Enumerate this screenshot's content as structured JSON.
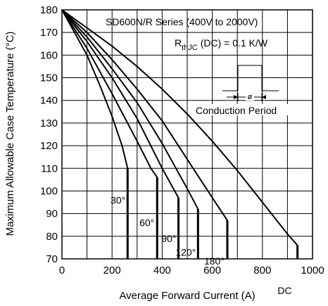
{
  "chart_data": {
    "type": "line",
    "title": "",
    "xlabel": "Average Forward Current (A)",
    "ylabel": "Maximum Allowable Case Temperature (°C)",
    "xlim": [
      0,
      1000
    ],
    "ylim": [
      70,
      180
    ],
    "x_ticks": [
      "0",
      "200",
      "400",
      "600",
      "800",
      "1000"
    ],
    "y_ticks": [
      "70",
      "80",
      "90",
      "100",
      "110",
      "120",
      "130",
      "140",
      "150",
      "160",
      "170",
      "180"
    ],
    "x_grid_step": 100,
    "y_grid_step": 10,
    "grid": true,
    "annotations": {
      "series_name": "SD600N/R Series (400V to 2000V)",
      "rth_prefix": "R",
      "rth_sub": "thJC",
      "rth_suffix": "(DC) = 0.1 K/W",
      "inset_phi": "ø",
      "inset_caption": "Conduction Period"
    },
    "series": [
      {
        "name": "30°",
        "label": "30°",
        "points": [
          [
            0,
            180
          ],
          [
            50,
            170
          ],
          [
            100,
            160
          ],
          [
            150,
            147
          ],
          [
            200,
            133
          ],
          [
            240,
            120
          ],
          [
            262,
            110
          ]
        ],
        "drop_x": 262
      },
      {
        "name": "60°",
        "label": "60°",
        "points": [
          [
            0,
            180
          ],
          [
            100,
            163
          ],
          [
            200,
            143
          ],
          [
            300,
            122
          ],
          [
            355,
            110
          ],
          [
            380,
            106
          ]
        ],
        "drop_x": 380
      },
      {
        "name": "90°",
        "label": "90°",
        "points": [
          [
            0,
            180
          ],
          [
            100,
            166
          ],
          [
            200,
            150
          ],
          [
            300,
            132
          ],
          [
            400,
            110
          ],
          [
            465,
            97
          ]
        ],
        "drop_x": 465
      },
      {
        "name": "120°",
        "label": "120°",
        "points": [
          [
            0,
            180
          ],
          [
            100,
            168
          ],
          [
            200,
            154
          ],
          [
            300,
            139
          ],
          [
            400,
            121
          ],
          [
            500,
            101
          ],
          [
            543,
            92
          ]
        ],
        "drop_x": 543
      },
      {
        "name": "180°",
        "label": "180°",
        "points": [
          [
            0,
            180
          ],
          [
            100,
            170
          ],
          [
            200,
            158
          ],
          [
            300,
            145
          ],
          [
            400,
            131
          ],
          [
            500,
            114
          ],
          [
            600,
            97
          ],
          [
            660,
            87
          ]
        ],
        "drop_x": 660
      },
      {
        "name": "DC",
        "label": "DC",
        "points": [
          [
            0,
            180
          ],
          [
            100,
            172
          ],
          [
            200,
            164
          ],
          [
            300,
            155
          ],
          [
            400,
            145
          ],
          [
            500,
            134
          ],
          [
            600,
            122
          ],
          [
            700,
            109
          ],
          [
            800,
            95
          ],
          [
            900,
            81
          ],
          [
            940,
            76
          ]
        ],
        "drop_x": 940
      }
    ]
  }
}
